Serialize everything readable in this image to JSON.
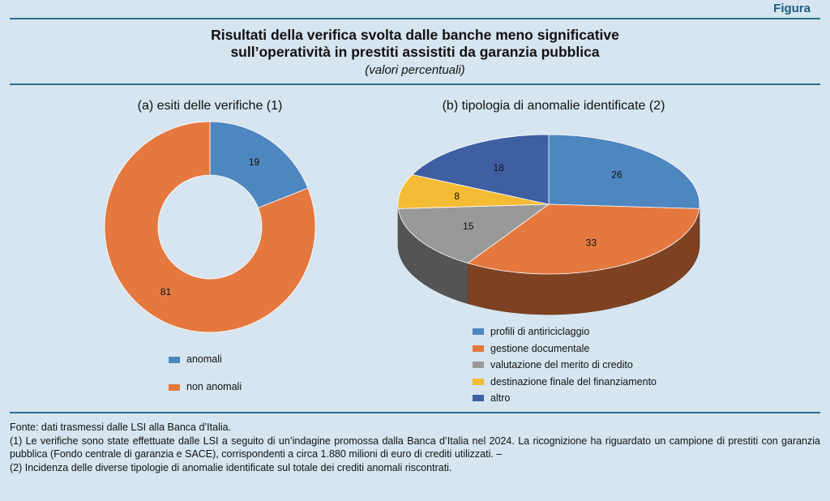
{
  "header": {
    "tab_label": "Figura",
    "title_line1": "Risultati della verifica svolta dalle banche meno significative",
    "title_line2": "sull’operatività in prestiti assistiti da garanzia pubblica",
    "subtitle": "(valori percentuali)"
  },
  "chart_data": [
    {
      "type": "pie",
      "variant": "donut",
      "title": "(a) esiti delle verifiche (1)",
      "categories": [
        "anomali",
        "non anomali"
      ],
      "values": [
        19,
        81
      ],
      "colors": [
        "#4e86c0",
        "#e5783f"
      ],
      "legend": "bottom"
    },
    {
      "type": "pie",
      "variant": "3d",
      "title": "(b) tipologia di anomalie identificate (2)",
      "categories": [
        "profili di antiriciclaggio",
        "gestione documentale",
        "valutazione del merito di credito",
        "destinazione finale del finanziamento",
        "altro"
      ],
      "values": [
        26,
        33,
        15,
        8,
        18
      ],
      "colors": [
        "#4e86c0",
        "#e5783f",
        "#999999",
        "#f4bb35",
        "#3f5fa3"
      ],
      "legend": "bottom"
    }
  ],
  "notes": {
    "source": "Fonte: dati trasmessi dalle LSI alla Banca d’Italia.",
    "note1": "(1) Le verifiche sono state effettuate dalle LSI a seguito di un’indagine promossa dalla Banca d’Italia nel 2024. La ricognizione ha riguardato un campione di prestiti con garanzia pubblica (Fondo centrale di garanzia e SACE), corrispondenti a circa 1.880 milioni di euro di crediti utilizzati. –",
    "note2": "(2) Incidenza delle diverse tipologie di anomalie identificate sul totale dei crediti anomali riscontrati."
  }
}
